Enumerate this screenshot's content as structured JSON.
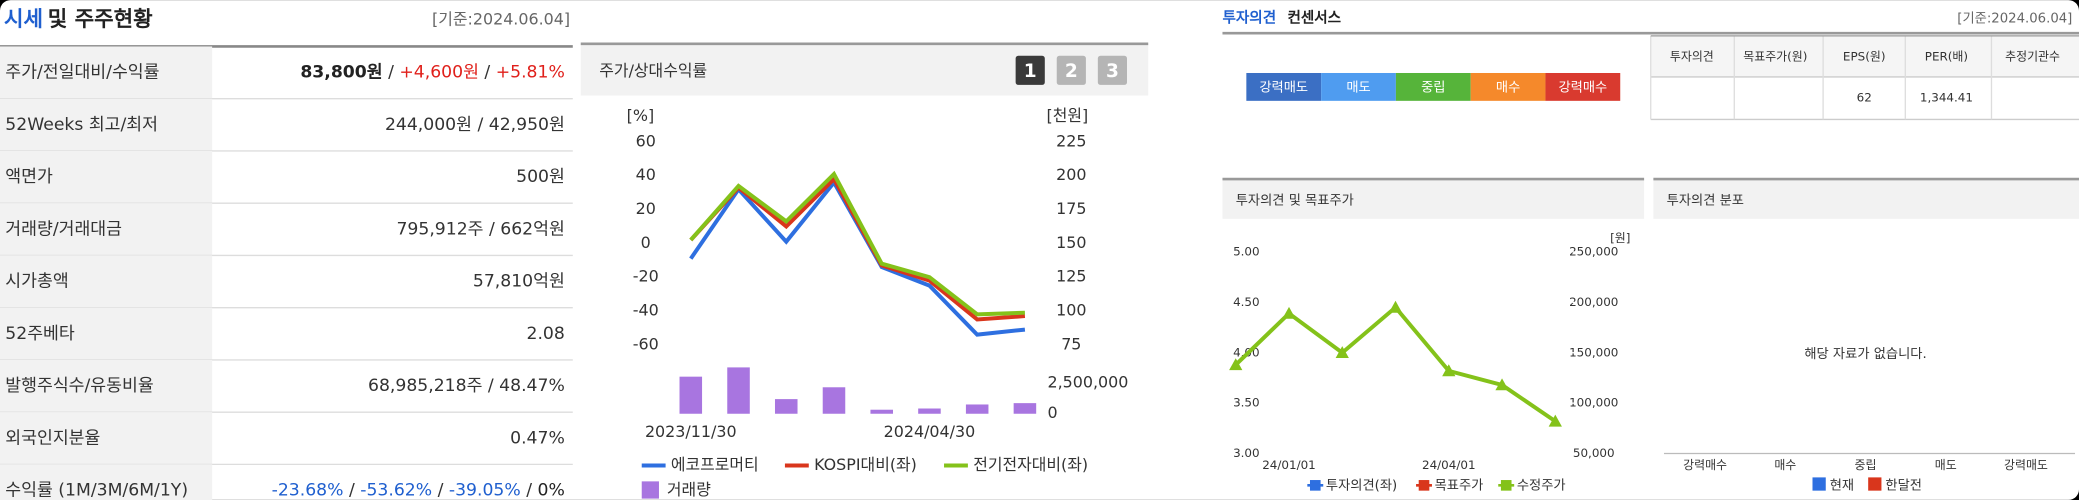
{
  "left_panel": {
    "title_accent": "시세",
    "title": "및 주주현황",
    "date": "[기준:2024.06.04]",
    "separator": " / ",
    "rows": [
      {
        "label": "주가/전일대비/수익률",
        "values": [
          "83,800원",
          "+4,600원",
          "+5.81%"
        ],
        "colors": [
          "#222",
          "#e0201b",
          "#e0201b"
        ]
      },
      {
        "label": "52Weeks 최고/최저",
        "values": [
          "244,000원",
          "42,950원"
        ]
      },
      {
        "label": "액면가",
        "values": [
          "500원"
        ]
      },
      {
        "label": "거래량/거래대금",
        "values": [
          "795,912주",
          "662억원"
        ]
      },
      {
        "label": "시가총액",
        "values": [
          "57,810억원"
        ]
      },
      {
        "label": "52주베타",
        "values": [
          "2.08"
        ]
      },
      {
        "label": "발행주식수/유동비율",
        "values": [
          "68,985,218주",
          "48.47%"
        ]
      },
      {
        "label": "외국인지분율",
        "values": [
          "0.47%"
        ]
      },
      {
        "label": "수익률 (1M/3M/6M/1Y)",
        "values": [
          "-23.68%",
          "-53.62%",
          "-39.05%",
          "0%"
        ],
        "colors": [
          "#1f5fcf",
          "#1f5fcf",
          "#1f5fcf",
          "#222"
        ]
      }
    ]
  },
  "consensus": {
    "title_accent": "투자의견",
    "title": "컨센서스",
    "date": "[기준:2024.06.04]",
    "scale": [
      {
        "label": "강력매도",
        "color": "#3b6fc4"
      },
      {
        "label": "매도",
        "color": "#4f9cf0"
      },
      {
        "label": "중립",
        "color": "#56b43a"
      },
      {
        "label": "매수",
        "color": "#f5892b"
      },
      {
        "label": "강력매수",
        "color": "#d93a2f"
      }
    ],
    "headers": [
      "투자의견",
      "목표주가(원)",
      "EPS(원)",
      "PER(배)",
      "추정기관수"
    ],
    "row": [
      null,
      null,
      "62",
      "1,344.41",
      null
    ]
  },
  "chart_data": [
    {
      "type": "line",
      "title": "주가/상대수익률",
      "tabs": [
        "1",
        "2",
        "3"
      ],
      "y_unit": "[%]",
      "y2_unit": "[천원]",
      "categories": [
        "2023/11/30",
        null,
        null,
        null,
        null,
        "2024/04/30",
        null,
        null
      ],
      "ylim": [
        -60,
        60
      ],
      "yticks": [
        60,
        40,
        20,
        0,
        -20,
        -40,
        -60
      ],
      "y2lim": [
        75,
        225
      ],
      "y2ticks": [
        225,
        200,
        175,
        150,
        125,
        100,
        75
      ],
      "series": [
        {
          "name": "에코프로머티",
          "color": "#2e6fe0",
          "values": [
            -9,
            32,
            1,
            36,
            -14,
            -25,
            -54,
            -51
          ]
        },
        {
          "name": "KOSPI대비(좌)",
          "color": "#d9361c",
          "values": [
            2,
            33,
            10,
            38,
            -13,
            -22,
            -45,
            -43
          ]
        },
        {
          "name": "전기전자대비(좌)",
          "color": "#84c21a",
          "values": [
            2,
            34,
            13,
            41,
            -12,
            -20,
            -42,
            -41
          ]
        }
      ]
    },
    {
      "type": "bar",
      "ylim": [
        0,
        4000000
      ],
      "yticks": [
        {
          "value": 2500000,
          "label": "2,500,000"
        },
        0
      ],
      "series": [
        {
          "name": "거래량",
          "color": "#a875e0",
          "values": [
            3040000,
            3800000,
            1200000,
            2170000,
            330000,
            430000,
            760000,
            870000
          ]
        }
      ]
    },
    {
      "type": "line",
      "title": "투자의견 및 목표주가",
      "y2_unit": "[원]",
      "categories": [
        null,
        "24/01/01",
        null,
        null,
        "24/04/01",
        null,
        null
      ],
      "ylim": [
        3,
        5
      ],
      "yticks": [
        {
          "value": 5,
          "label": "5.00"
        },
        {
          "value": 4.5,
          "label": "4.50"
        },
        {
          "value": 4,
          "label": "4.00"
        },
        {
          "value": 3.5,
          "label": "3.50"
        },
        {
          "value": 3,
          "label": "3.00"
        }
      ],
      "y2lim": [
        50000,
        250000
      ],
      "y2ticks": [
        {
          "value": 250000,
          "label": "250,000"
        },
        {
          "value": 200000,
          "label": "200,000"
        },
        {
          "value": 150000,
          "label": "150,000"
        },
        {
          "value": 100000,
          "label": "100,000"
        },
        {
          "value": 50000,
          "label": "50,000"
        }
      ],
      "series": [
        {
          "name": "투자의견(좌)",
          "color": "#2e6fe0",
          "values": [
            null,
            null,
            null,
            null,
            null,
            null,
            null
          ]
        },
        {
          "name": "목표주가",
          "color": "#d9361c",
          "values": [
            null,
            null,
            null,
            null,
            null,
            null,
            null
          ]
        },
        {
          "name": "수정주가",
          "color": "#84c21a",
          "axis": "y2",
          "values": [
            138000,
            189000,
            150000,
            195000,
            132000,
            118000,
            82000
          ]
        }
      ]
    },
    {
      "type": "bar",
      "title": "투자의견 분포",
      "message": "해당 자료가 없습니다.",
      "categories": [
        "강력매수",
        "매수",
        "중립",
        "매도",
        "강력매도"
      ],
      "series": [
        {
          "name": "현재",
          "color": "#2e6fe0",
          "values": [
            null,
            null,
            null,
            null,
            null
          ]
        },
        {
          "name": "한달전",
          "color": "#d9361c",
          "values": [
            null,
            null,
            null,
            null,
            null
          ]
        }
      ]
    }
  ]
}
